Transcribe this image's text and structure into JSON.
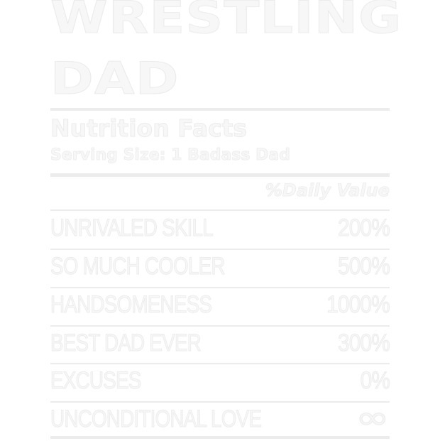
{
  "design": {
    "title_line1": "WRESTLING",
    "title_line2": "DAD",
    "nutrition_title": "Nutrition Facts",
    "serving_size": "Serving Size: 1 Badass Dad",
    "daily_value_header": "%Daily Value",
    "rows": [
      {
        "label": "UNRIVALED SKILL",
        "value": "200%"
      },
      {
        "label": "SO MUCH COOLER",
        "value": "500%"
      },
      {
        "label": "HANDSOMENESS",
        "value": "1000%"
      },
      {
        "label": "BEST DAD EVER",
        "value": "300%"
      },
      {
        "label": "EXCUSES",
        "value": "0%"
      },
      {
        "label": "UNCONDITIONAL LOVE",
        "value": "∞"
      }
    ]
  },
  "colors": {
    "background": "#ffffff",
    "print": "#f7f7f7",
    "outline": "#ececec"
  }
}
